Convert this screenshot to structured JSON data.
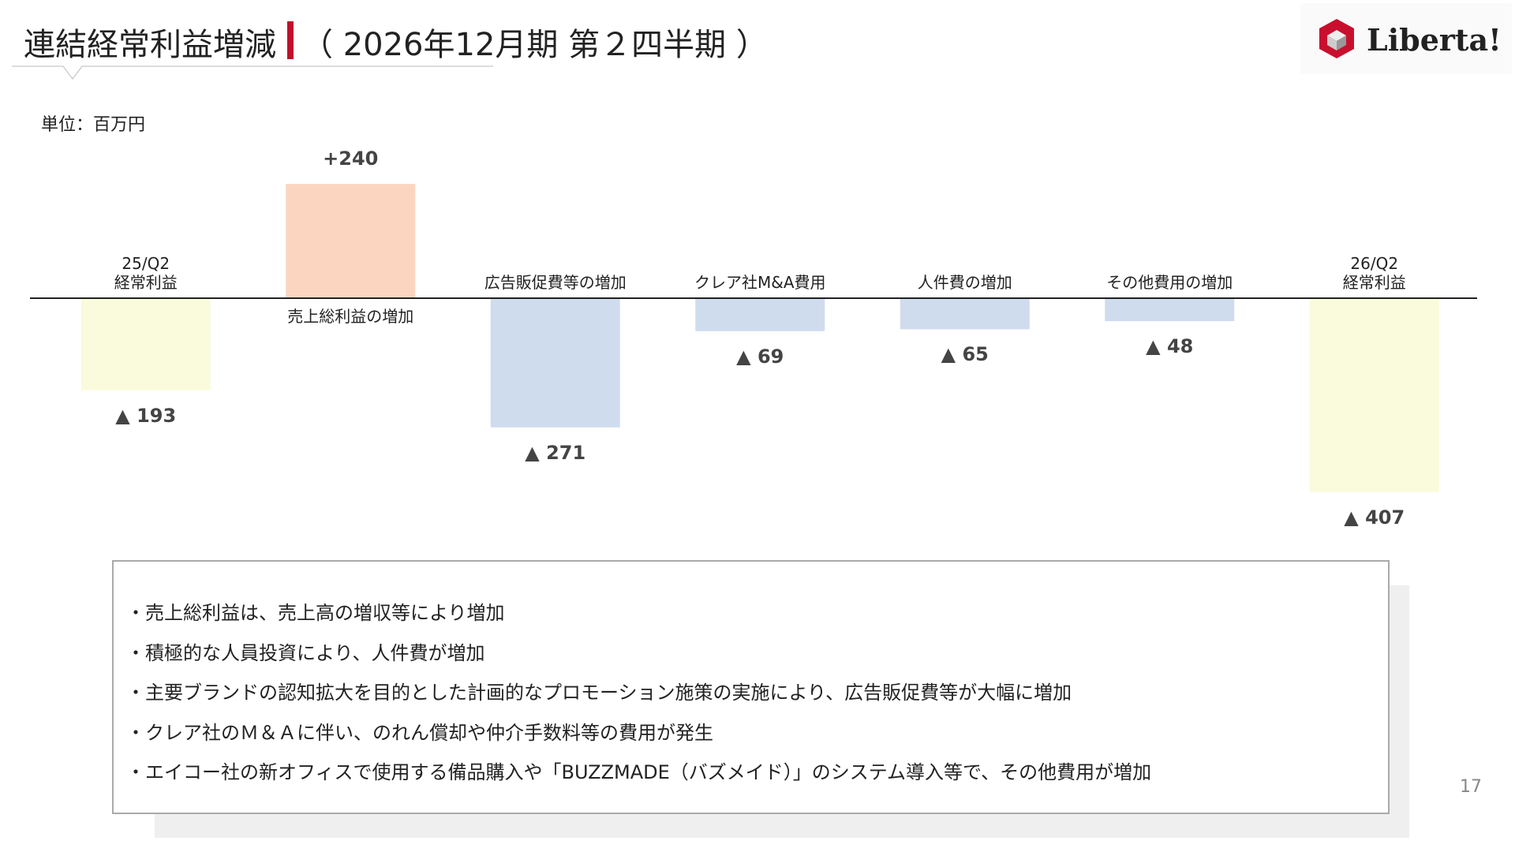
{
  "header": {
    "title": "連結経常利益増減",
    "subtitle": "（ 2026年12月期 第２四半期 ）"
  },
  "logo": "Liberta!",
  "unit": "単位：百万円",
  "chart_data": {
    "type": "bar",
    "categories": [
      "25/Q2\n経常利益",
      "売上総利益の増加",
      "広告販促費等の増加",
      "クレア社M&A費用",
      "人件費の増加",
      "その他費用の増加",
      "26/Q2\n経常利益"
    ],
    "values": [
      -193,
      240,
      -271,
      -69,
      -65,
      -48,
      -407
    ],
    "value_labels": [
      "▲ 193",
      "+240",
      "▲ 271",
      "▲ 69",
      "▲ 65",
      "▲ 48",
      "▲ 407"
    ],
    "colors": [
      "#fafadc",
      "#fbd5c0",
      "#cfdcee",
      "#cfdcee",
      "#cfdcee",
      "#cfdcee",
      "#fafadc"
    ],
    "ylim": [
      -500,
      300
    ]
  },
  "notes": [
    "・売上総利益は、売上高の増収等により増加",
    "・積極的な人員投資により、人件費が増加",
    "・主要ブランドの認知拡大を目的とした計画的なプロモーション施策の実施により、広告販促費等が大幅に増加",
    "・クレア社のＭ＆Ａに伴い、のれん償却や仲介手数料等の費用が発生",
    "・エイコー社の新オフィスで使用する備品購入や「BUZZMADE（バズメイド）」のシステム導入等で、その他費用が増加"
  ],
  "page_number": "17"
}
